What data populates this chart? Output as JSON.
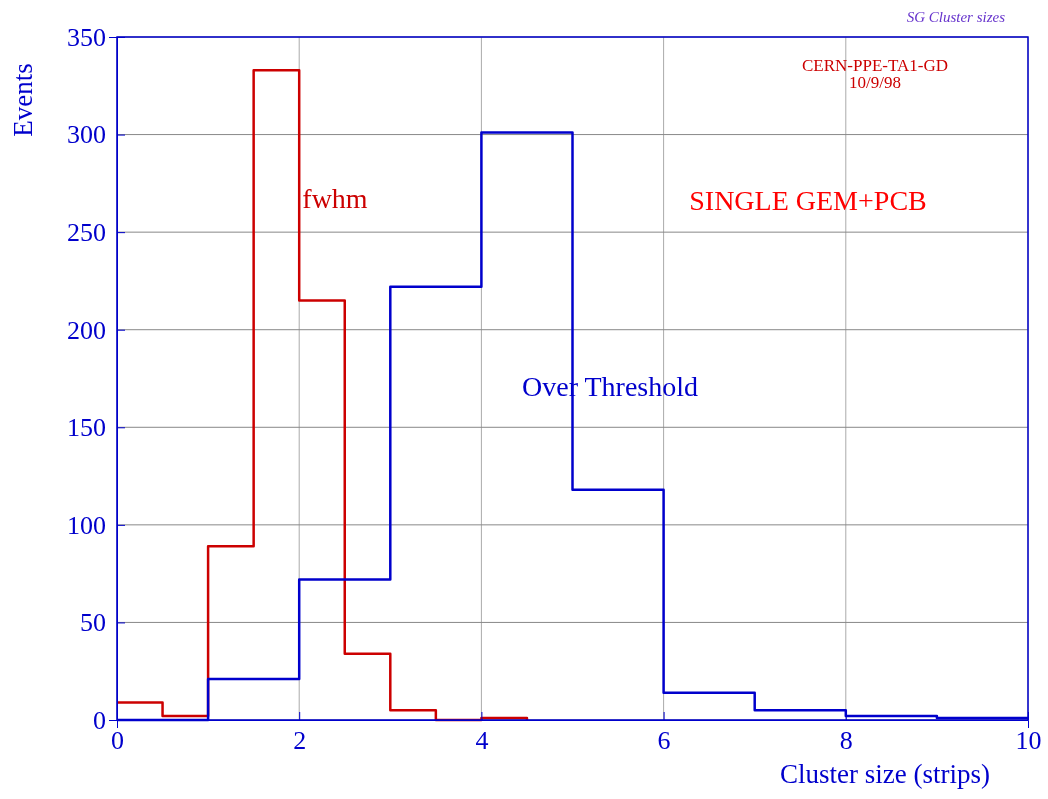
{
  "chart_data": {
    "type": "step",
    "title": "SG Cluster sizes",
    "xlabel": "Cluster size (strips)",
    "ylabel": "Events",
    "annotations": [
      "CERN-PPE-TA1-GD\n10/9/98",
      "SINGLE GEM+PCB"
    ],
    "series": [
      {
        "name": "fwhm",
        "color": "#cc0000",
        "x": [
          0,
          0.5,
          1,
          1.5,
          2,
          2.5,
          3,
          3.5,
          4,
          4.5
        ],
        "values": [
          9,
          2,
          89,
          333,
          215,
          34,
          5,
          0,
          1,
          0
        ]
      },
      {
        "name": "Over Threshold",
        "color": "#0000cc",
        "x": [
          0,
          1,
          2,
          3,
          4,
          5,
          6,
          7,
          8,
          9,
          10
        ],
        "values": [
          0,
          21,
          72,
          222,
          301,
          118,
          14,
          5,
          2,
          1,
          1
        ]
      }
    ],
    "xlim": [
      0,
      10
    ],
    "xticks": [
      0,
      2,
      4,
      6,
      8,
      10
    ],
    "ylim": [
      0,
      350
    ],
    "yticks": [
      0,
      50,
      100,
      150,
      200,
      250,
      300,
      350
    ],
    "grid": true
  }
}
